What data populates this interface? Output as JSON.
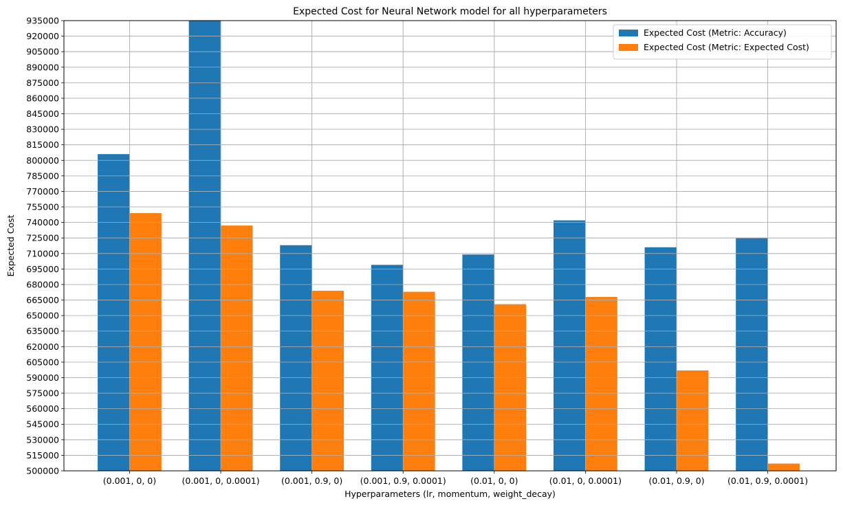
{
  "chart_data": {
    "type": "bar",
    "title": "Expected Cost for Neural Network model for all hyperparameters",
    "xlabel": "Hyperparameters (lr, momentum, weight_decay)",
    "ylabel": "Expected Cost",
    "ylim": [
      500000,
      935000
    ],
    "ytick_step": 15000,
    "grid": true,
    "legend_position": "top-right",
    "categories": [
      "(0.001, 0, 0)",
      "(0.001, 0, 0.0001)",
      "(0.001, 0.9, 0)",
      "(0.001, 0.9, 0.0001)",
      "(0.01, 0, 0)",
      "(0.01, 0, 0.0001)",
      "(0.01, 0.9, 0)",
      "(0.01, 0.9, 0.0001)"
    ],
    "series": [
      {
        "name": "Expected Cost (Metric: Accuracy)",
        "color": "#1f77b4",
        "values": [
          806000,
          940000,
          718000,
          699000,
          709000,
          742000,
          716000,
          725000
        ]
      },
      {
        "name": "Expected Cost (Metric: Expected Cost)",
        "color": "#ff7f0e",
        "values": [
          749000,
          737000,
          674000,
          673000,
          661000,
          668000,
          597000,
          507000
        ]
      }
    ]
  }
}
